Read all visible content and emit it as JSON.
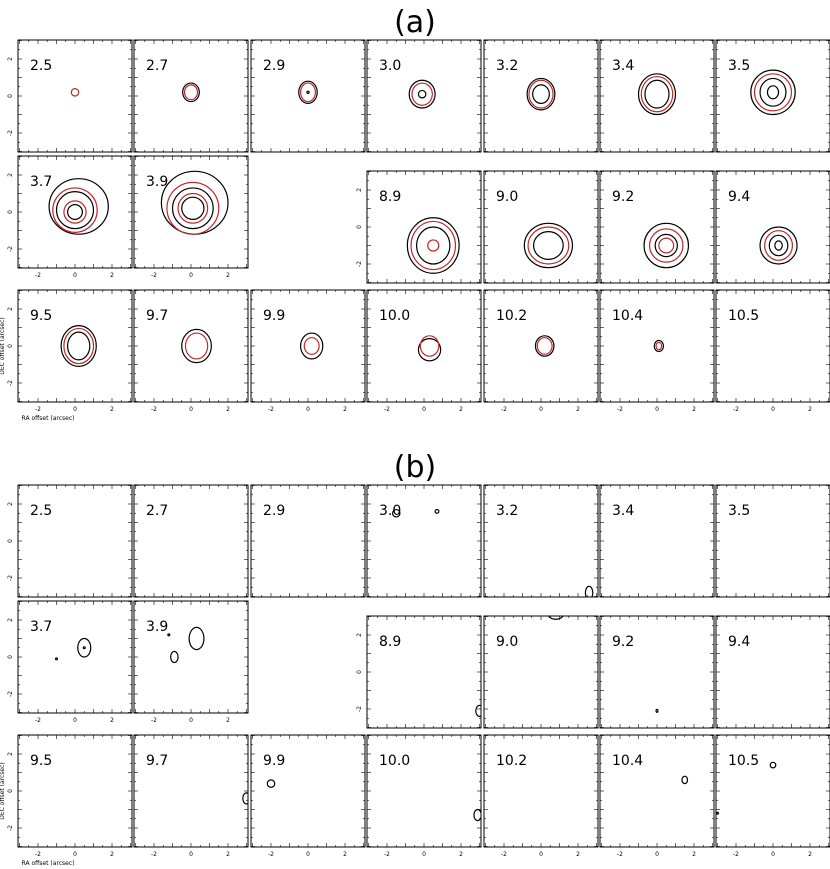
{
  "panels": [
    {
      "title": "(a)",
      "channels": [
        "2.5",
        "2.7",
        "2.9",
        "3.0",
        "3.2",
        "3.4",
        "3.5",
        "3.7",
        "3.9",
        "8.9",
        "9.0",
        "9.2",
        "9.4",
        "9.5",
        "9.7",
        "9.9",
        "10.0",
        "10.2",
        "10.4",
        "10.5"
      ]
    },
    {
      "title": "(b)",
      "channels": [
        "2.5",
        "2.7",
        "2.9",
        "3.0",
        "3.2",
        "3.4",
        "3.5",
        "3.7",
        "3.9",
        "8.9",
        "9.0",
        "9.2",
        "9.4",
        "9.5",
        "9.7",
        "9.9",
        "10.0",
        "10.2",
        "10.4",
        "10.5"
      ]
    }
  ],
  "axes": {
    "xticks": [
      "-2",
      "0",
      "2"
    ],
    "yticks": [
      "2",
      "0",
      "-2"
    ],
    "xlabel": "RA offset (arcsec)",
    "ylabel": "DEC offset (arcsec)"
  }
}
